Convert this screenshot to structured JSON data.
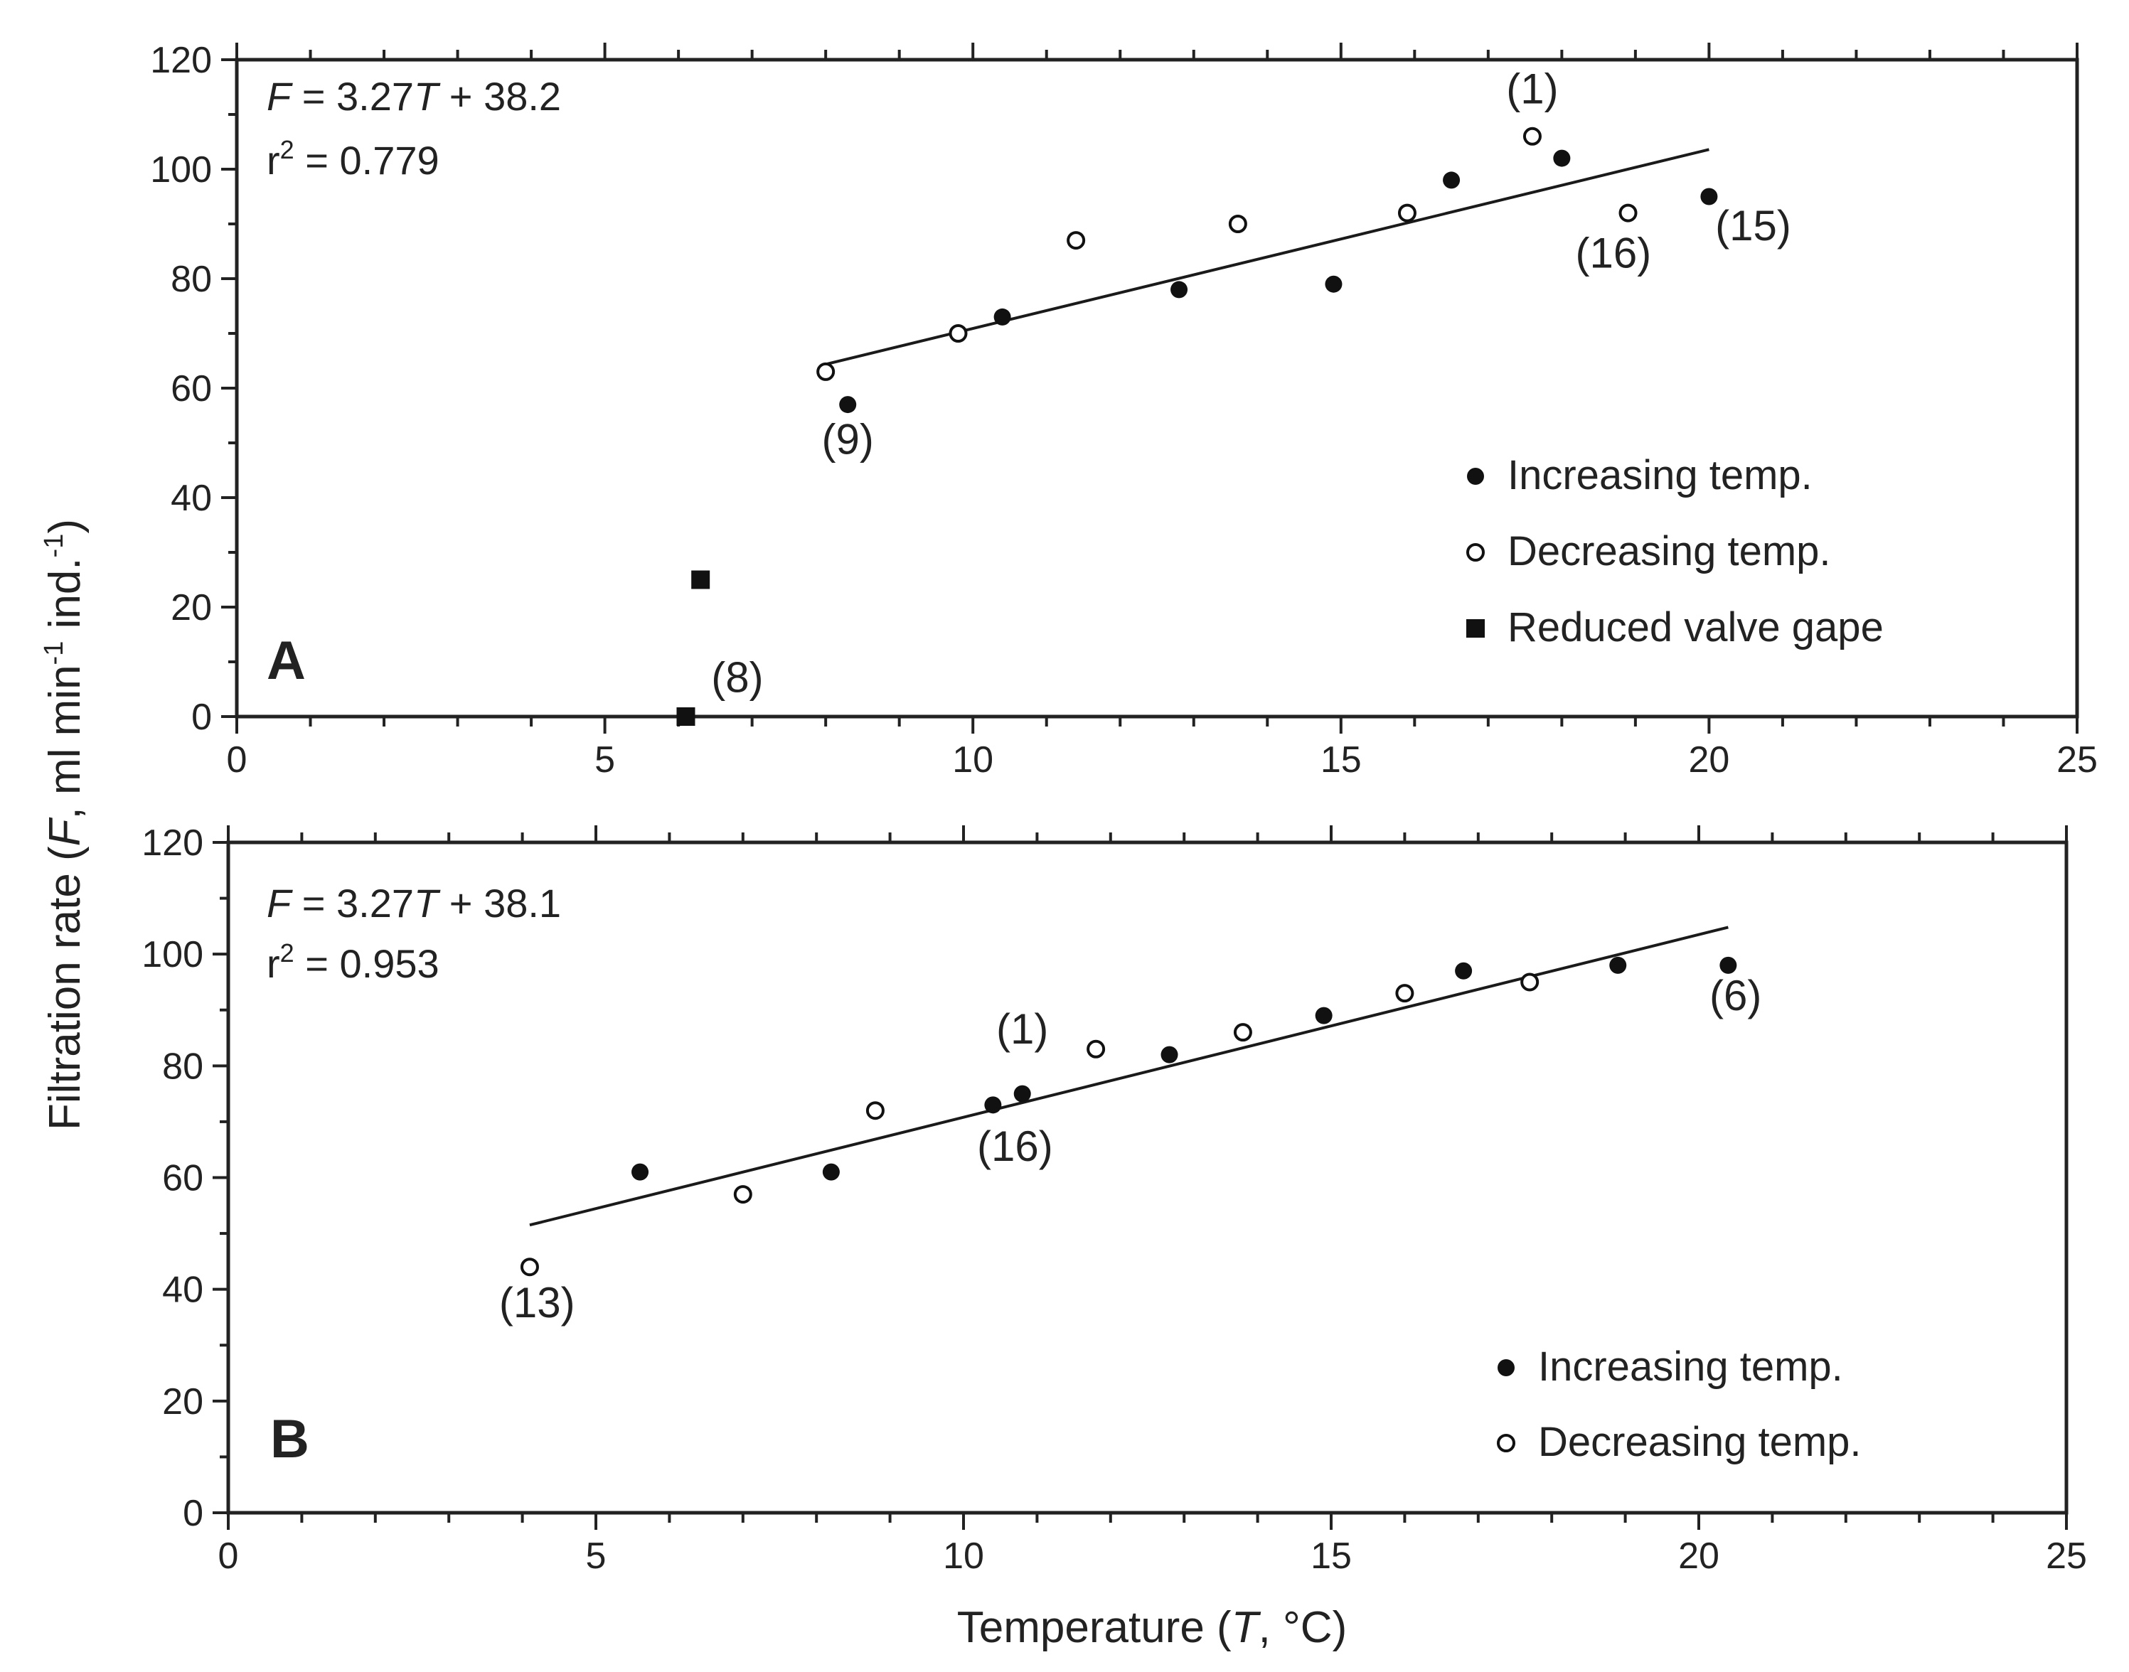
{
  "chart_data": [
    {
      "type": "scatter",
      "panel_label": "A",
      "xlim": [
        0,
        25
      ],
      "ylim": [
        0,
        120
      ],
      "x_ticks": [
        "0",
        "5",
        "10",
        "15",
        "20",
        "25"
      ],
      "y_ticks": [
        "0",
        "20",
        "40",
        "60",
        "80",
        "100",
        "120"
      ],
      "grid": false,
      "legend_position": "bottom-right",
      "equation": {
        "F": "F",
        "mid": " = 3.27",
        "T": "T",
        "tail": " + 38.2"
      },
      "r2": {
        "base": "r",
        "sup": "2",
        "rest": " = 0.779"
      },
      "fit": {
        "slope": 3.27,
        "intercept": 38.2,
        "x_range": [
          8.0,
          20.0
        ]
      },
      "series": [
        {
          "name": "Increasing temp.",
          "marker": "filled-circle",
          "x": [
            8.3,
            10.4,
            12.8,
            14.9,
            16.5,
            18.0,
            20.0
          ],
          "y": [
            57,
            73,
            78,
            79,
            98,
            102,
            95
          ]
        },
        {
          "name": "Decreasing temp.",
          "marker": "open-circle",
          "x": [
            8.0,
            9.8,
            11.4,
            13.6,
            15.9,
            17.6,
            18.9
          ],
          "y": [
            63,
            70,
            87,
            90,
            92,
            106,
            92
          ]
        },
        {
          "name": "Reduced valve gape",
          "marker": "filled-square",
          "x": [
            6.1,
            6.3
          ],
          "y": [
            0,
            25
          ]
        }
      ],
      "annotations": [
        {
          "text": "(1)",
          "x": 17.6,
          "y": 112
        },
        {
          "text": "(16)",
          "x": 18.7,
          "y": 82
        },
        {
          "text": "(15)",
          "x": 20.6,
          "y": 87
        },
        {
          "text": "(9)",
          "x": 8.3,
          "y": 48
        },
        {
          "text": "(8)",
          "x": 6.8,
          "y": 4.5
        }
      ]
    },
    {
      "type": "scatter",
      "panel_label": "B",
      "xlim": [
        0,
        25
      ],
      "ylim": [
        0,
        120
      ],
      "x_ticks": [
        "0",
        "5",
        "10",
        "15",
        "20",
        "25"
      ],
      "y_ticks": [
        "0",
        "20",
        "40",
        "60",
        "80",
        "100",
        "120"
      ],
      "grid": false,
      "legend_position": "bottom-right",
      "equation": {
        "F": "F",
        "mid": " = 3.27",
        "T": "T",
        "tail": " + 38.1"
      },
      "r2": {
        "base": "r",
        "sup": "2",
        "rest": " = 0.953"
      },
      "fit": {
        "slope": 3.27,
        "intercept": 38.1,
        "x_range": [
          4.1,
          20.4
        ]
      },
      "series": [
        {
          "name": "Increasing temp.",
          "marker": "filled-circle",
          "x": [
            5.6,
            8.2,
            10.4,
            10.8,
            12.8,
            14.9,
            16.8,
            18.9,
            20.4
          ],
          "y": [
            61,
            61,
            73,
            75,
            82,
            89,
            97,
            98,
            98
          ]
        },
        {
          "name": "Decreasing temp.",
          "marker": "open-circle",
          "x": [
            4.1,
            7.0,
            8.8,
            11.8,
            13.8,
            16.0,
            17.7
          ],
          "y": [
            44,
            57,
            72,
            83,
            86,
            93,
            95
          ]
        }
      ],
      "annotations": [
        {
          "text": "(1)",
          "x": 10.8,
          "y": 84
        },
        {
          "text": "(16)",
          "x": 10.7,
          "y": 63
        },
        {
          "text": "(6)",
          "x": 20.5,
          "y": 90
        },
        {
          "text": "(13)",
          "x": 4.2,
          "y": 35
        }
      ]
    }
  ],
  "shared_axes": {
    "ylabel": {
      "pre": "Filtration rate (",
      "F": "F",
      "mid": ", ml min",
      "sup1": "-1",
      "mid2": " ind.",
      "sup2": "-1",
      "post": ")"
    },
    "xlabel": {
      "pre": "Temperature (",
      "T": "T",
      "post": ", °C)"
    }
  },
  "colors": {
    "ink": "#222222",
    "marker": "#111111",
    "background": "#ffffff"
  }
}
